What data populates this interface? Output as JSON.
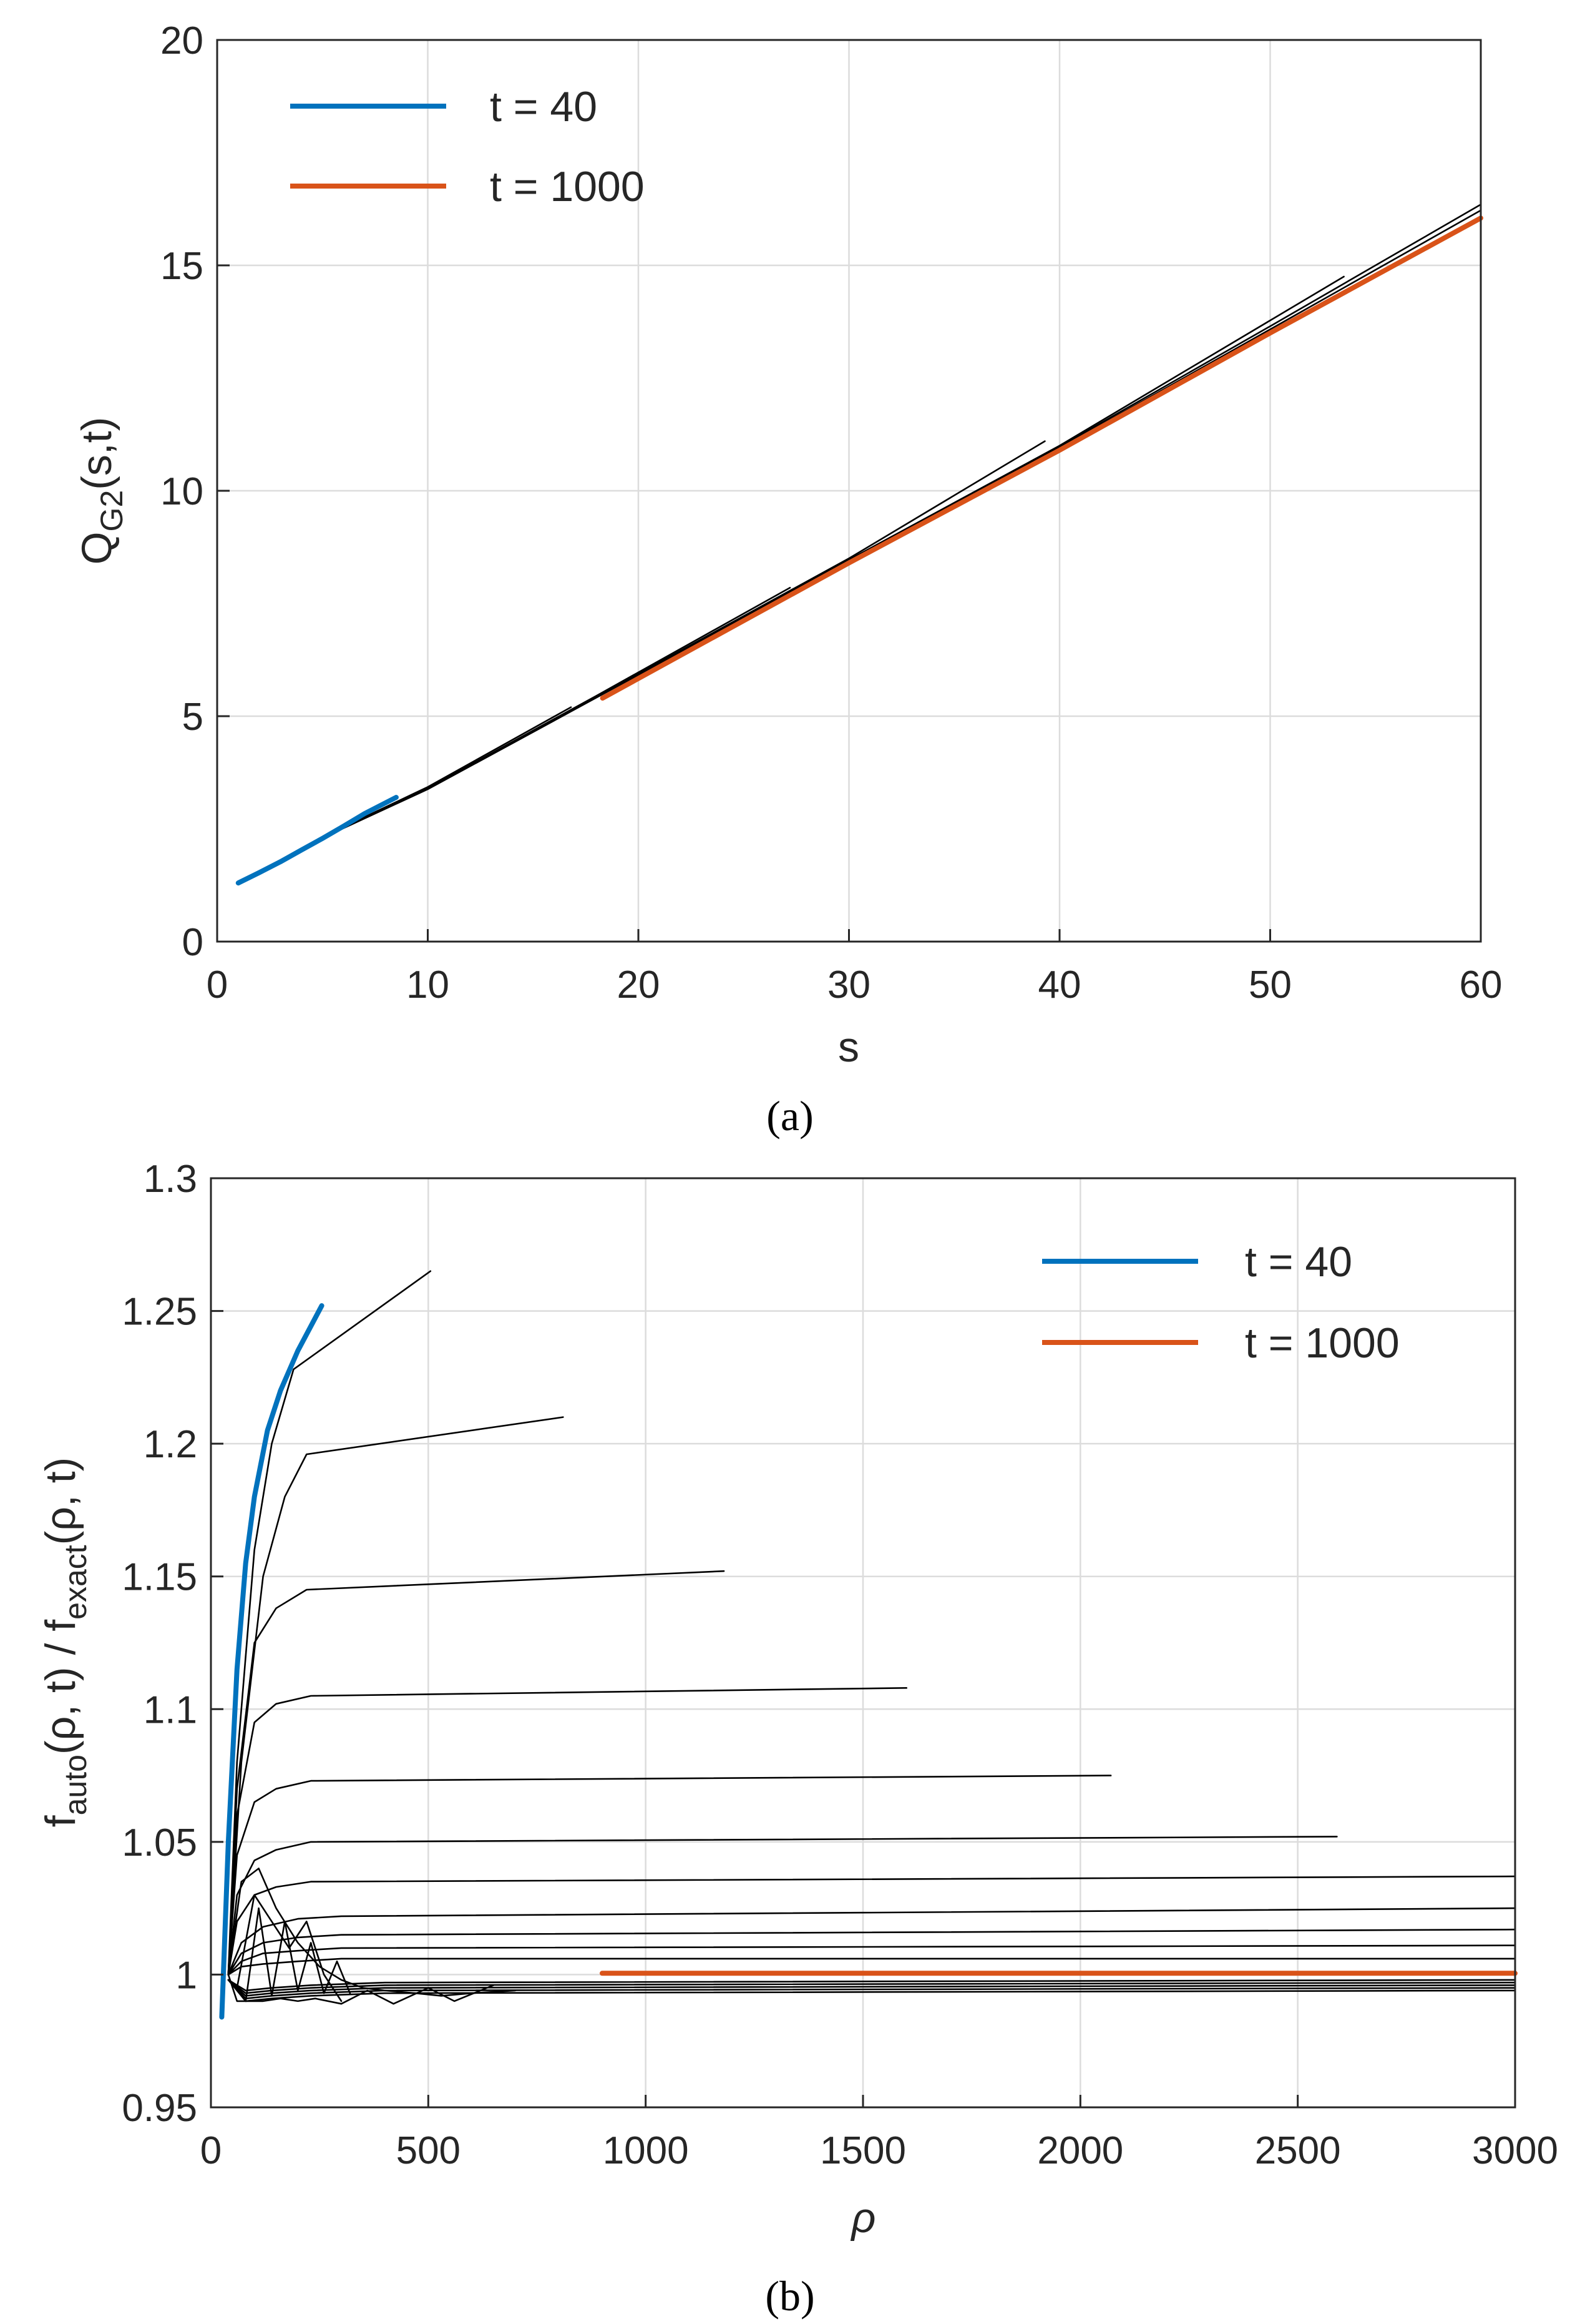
{
  "chart_data": [
    {
      "panel_label": "a",
      "type": "line",
      "xlabel": "s",
      "ylabel": {
        "main": "Q",
        "sub": "G2",
        "tail": "(s,t)"
      },
      "xlim": [
        0,
        60
      ],
      "ylim": [
        0,
        20
      ],
      "xticks": [
        0,
        10,
        20,
        30,
        40,
        50,
        60
      ],
      "yticks": [
        0,
        5,
        10,
        15,
        20
      ],
      "grid": true,
      "legend_position": "top-left",
      "legend": [
        {
          "label": "t = 40",
          "color": "#0072bd"
        },
        {
          "label": "t = 1000",
          "color": "#d95319"
        }
      ],
      "series": [
        {
          "name": "t = 40",
          "color": "#0072bd",
          "x": [
            1,
            2,
            3,
            4,
            5,
            6,
            7,
            8.5
          ],
          "y": [
            1.3,
            1.53,
            1.77,
            2.03,
            2.29,
            2.56,
            2.84,
            3.2
          ]
        },
        {
          "name": "t = 1000",
          "color": "#d95319",
          "x": [
            18.3,
            30,
            40,
            50,
            60
          ],
          "y": [
            5.4,
            8.4,
            10.9,
            13.5,
            16.05
          ]
        },
        {
          "name": "intermediate",
          "color": "#000000",
          "x": [
            1,
            5,
            10,
            16.8
          ],
          "y": [
            1.3,
            2.32,
            3.43,
            5.2
          ]
        },
        {
          "name": "intermediate",
          "color": "#000000",
          "x": [
            1,
            5,
            10,
            18,
            27.2
          ],
          "y": [
            1.3,
            2.3,
            3.4,
            5.45,
            7.85
          ]
        },
        {
          "name": "intermediate",
          "color": "#000000",
          "x": [
            1,
            5,
            10,
            18,
            30,
            39.3
          ],
          "y": [
            1.3,
            2.3,
            3.4,
            5.43,
            8.5,
            11.1
          ]
        },
        {
          "name": "intermediate",
          "color": "#000000",
          "x": [
            1,
            5,
            10,
            18,
            30,
            40,
            53.5
          ],
          "y": [
            1.3,
            2.3,
            3.4,
            5.42,
            8.47,
            11.0,
            14.75
          ]
        },
        {
          "name": "intermediate",
          "color": "#000000",
          "x": [
            1,
            5,
            10,
            18,
            30,
            40,
            50,
            60
          ],
          "y": [
            1.3,
            2.3,
            3.4,
            5.42,
            8.45,
            10.98,
            13.65,
            16.35
          ]
        },
        {
          "name": "intermediate",
          "color": "#000000",
          "x": [
            1,
            5,
            10,
            18,
            30,
            40,
            50,
            60
          ],
          "y": [
            1.3,
            2.3,
            3.38,
            5.41,
            8.43,
            10.95,
            13.58,
            16.22
          ]
        }
      ]
    },
    {
      "panel_label": "b",
      "type": "line",
      "xlabel": "ρ",
      "ylabel": {
        "f1": "f",
        "sub1": "auto",
        "mid": "(ρ, t) / f",
        "sub2": "exact",
        "tail": "(ρ, t)"
      },
      "xlim": [
        0,
        3000
      ],
      "ylim": [
        0.95,
        1.3
      ],
      "xticks": [
        0,
        500,
        1000,
        1500,
        2000,
        2500,
        3000
      ],
      "yticks": [
        0.95,
        1,
        1.05,
        1.1,
        1.15,
        1.2,
        1.25,
        1.3
      ],
      "ytick_labels": [
        "0.95",
        "1",
        "1.05",
        "1.1",
        "1.15",
        "1.2",
        "1.25",
        "1.3"
      ],
      "grid": true,
      "legend_position": "top-right",
      "legend": [
        {
          "label": "t = 40",
          "color": "#0072bd"
        },
        {
          "label": "t = 1000",
          "color": "#d95319"
        }
      ],
      "series": [
        {
          "name": "t = 40",
          "color": "#0072bd",
          "x": [
            25,
            40,
            60,
            80,
            100,
            130,
            160,
            200,
            255
          ],
          "y": [
            0.984,
            1.05,
            1.115,
            1.155,
            1.18,
            1.205,
            1.22,
            1.235,
            1.252
          ]
        },
        {
          "name": "t = 1000",
          "color": "#d95319",
          "x": [
            900,
            3000
          ],
          "y": [
            1.0005,
            1.0005
          ]
        },
        {
          "name": "intermediate",
          "color": "#000000",
          "x": [
            40,
            60,
            100,
            140,
            190,
            505
          ],
          "y": [
            1.0,
            1.08,
            1.16,
            1.2,
            1.228,
            1.265
          ]
        },
        {
          "name": "intermediate",
          "color": "#000000",
          "x": [
            40,
            70,
            120,
            170,
            220,
            810
          ],
          "y": [
            1.0,
            1.08,
            1.15,
            1.18,
            1.196,
            1.21
          ]
        },
        {
          "name": "intermediate",
          "color": "#000000",
          "x": [
            40,
            60,
            100,
            150,
            220,
            1180
          ],
          "y": [
            1.0,
            1.07,
            1.125,
            1.138,
            1.145,
            1.152
          ]
        },
        {
          "name": "intermediate",
          "color": "#000000",
          "x": [
            40,
            60,
            100,
            150,
            230,
            1600
          ],
          "y": [
            1.0,
            1.06,
            1.095,
            1.102,
            1.105,
            1.108
          ]
        },
        {
          "name": "intermediate",
          "color": "#000000",
          "x": [
            40,
            60,
            100,
            150,
            230,
            2070
          ],
          "y": [
            1.0,
            1.045,
            1.065,
            1.07,
            1.073,
            1.075
          ]
        },
        {
          "name": "intermediate",
          "color": "#000000",
          "x": [
            40,
            60,
            100,
            150,
            230,
            2590
          ],
          "y": [
            1.0,
            1.03,
            1.043,
            1.047,
            1.05,
            1.052
          ]
        },
        {
          "name": "intermediate",
          "color": "#000000",
          "x": [
            40,
            60,
            100,
            150,
            230,
            3000
          ],
          "y": [
            1.0,
            1.02,
            1.03,
            1.033,
            1.035,
            1.037
          ]
        },
        {
          "name": "intermediate",
          "color": "#000000",
          "x": [
            40,
            70,
            120,
            200,
            300,
            3000
          ],
          "y": [
            1.0,
            1.012,
            1.018,
            1.021,
            1.022,
            1.025
          ]
        },
        {
          "name": "intermediate",
          "color": "#000000",
          "x": [
            40,
            70,
            120,
            200,
            300,
            3000
          ],
          "y": [
            1.0,
            1.008,
            1.012,
            1.014,
            1.015,
            1.017
          ]
        },
        {
          "name": "intermediate",
          "color": "#000000",
          "x": [
            40,
            70,
            120,
            200,
            300,
            3000
          ],
          "y": [
            1.0,
            1.005,
            1.008,
            1.009,
            1.01,
            1.011
          ]
        },
        {
          "name": "intermediate",
          "color": "#000000",
          "x": [
            40,
            70,
            120,
            200,
            300,
            3000
          ],
          "y": [
            1.0,
            1.003,
            1.004,
            1.005,
            1.006,
            1.006
          ]
        },
        {
          "name": "intermediate",
          "color": "#000000",
          "x": [
            40,
            80,
            140,
            230,
            400,
            3000
          ],
          "y": [
            0.998,
            0.994,
            0.995,
            0.996,
            0.997,
            0.998
          ]
        },
        {
          "name": "intermediate",
          "color": "#000000",
          "x": [
            40,
            80,
            140,
            230,
            400,
            3000
          ],
          "y": [
            0.998,
            0.993,
            0.994,
            0.995,
            0.996,
            0.997
          ]
        },
        {
          "name": "intermediate",
          "color": "#000000",
          "x": [
            40,
            80,
            140,
            230,
            400,
            3000
          ],
          "y": [
            0.998,
            0.992,
            0.993,
            0.994,
            0.995,
            0.996
          ]
        },
        {
          "name": "intermediate",
          "color": "#000000",
          "x": [
            40,
            80,
            140,
            230,
            400,
            3000
          ],
          "y": [
            0.998,
            0.991,
            0.992,
            0.993,
            0.994,
            0.995
          ]
        },
        {
          "name": "intermediate",
          "color": "#000000",
          "x": [
            40,
            80,
            140,
            230,
            400,
            3000
          ],
          "y": [
            0.998,
            0.99,
            0.991,
            0.992,
            0.993,
            0.994
          ]
        },
        {
          "name": "oscillating-front",
          "color": "#000000",
          "x": [
            40,
            70,
            110,
            150,
            200,
            250,
            300,
            350,
            400,
            470,
            530,
            600,
            700
          ],
          "y": [
            1.0,
            1.035,
            1.04,
            1.025,
            1.012,
            1.003,
            0.998,
            0.995,
            0.994,
            0.993,
            0.992,
            0.993,
            0.994
          ]
        },
        {
          "name": "oscillating-front",
          "color": "#000000",
          "x": [
            40,
            60,
            90,
            120,
            160,
            200,
            240,
            300,
            360,
            420,
            500,
            560,
            650
          ],
          "y": [
            1.0,
            0.99,
            0.99,
            0.99,
            0.991,
            0.99,
            0.991,
            0.989,
            0.994,
            0.989,
            0.995,
            0.99,
            0.996
          ]
        },
        {
          "name": "oscillating-front",
          "color": "#000000",
          "x": [
            60,
            100,
            140,
            180,
            220,
            260,
            300
          ],
          "y": [
            0.995,
            1.03,
            1.02,
            1.01,
            1.02,
            1.0,
            0.99
          ]
        },
        {
          "name": "oscillating-front",
          "color": "#000000",
          "x": [
            80,
            110,
            140,
            170,
            200,
            230,
            260,
            290,
            320
          ],
          "y": [
            0.99,
            1.025,
            0.992,
            1.02,
            0.994,
            1.012,
            0.993,
            1.005,
            0.993
          ]
        }
      ]
    }
  ],
  "captions": {
    "a": "(a)",
    "b": "(b)"
  }
}
